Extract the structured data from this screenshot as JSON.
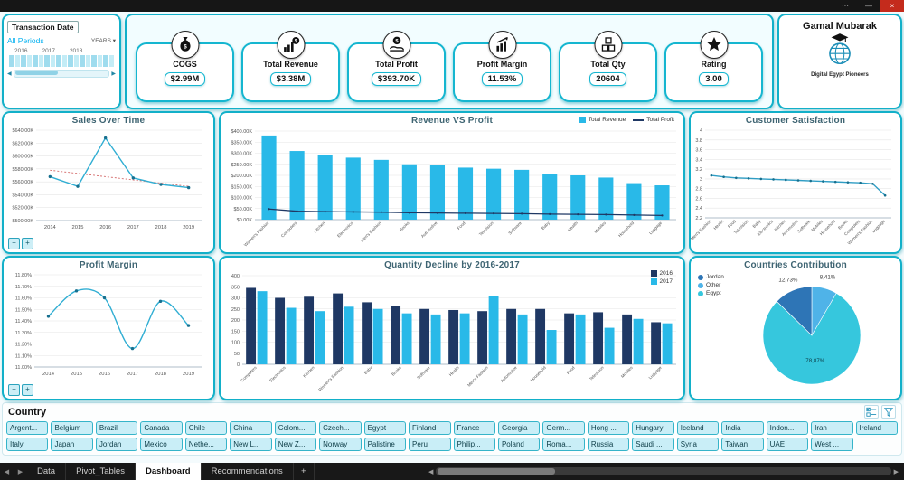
{
  "window": {
    "controls": {
      "more": "···",
      "minimize": "—",
      "close": "×"
    }
  },
  "slicer_date": {
    "title": "Transaction Date",
    "period_label": "All Periods",
    "mode_label": "YEARS",
    "years": [
      "2016",
      "2017",
      "2018"
    ],
    "scroll_left": "◀",
    "scroll_right": "▶"
  },
  "kpis": [
    {
      "label": "COGS",
      "value": "$2.99M",
      "icon": "money-bag-icon"
    },
    {
      "label": "Total Revenue",
      "value": "$3.38M",
      "icon": "revenue-icon"
    },
    {
      "label": "Total Profit",
      "value": "$393.70K",
      "icon": "profit-hand-icon"
    },
    {
      "label": "Profit Margin",
      "value": "11.53%",
      "icon": "margin-chart-icon"
    },
    {
      "label": "Total Qty",
      "value": "20604",
      "icon": "boxes-icon"
    },
    {
      "label": "Rating",
      "value": "3.00",
      "icon": "star-icon"
    }
  ],
  "profile": {
    "name": "Gamal Mubarak",
    "org": "Digital Egypt Pioneers"
  },
  "chart_controls": {
    "zoom_out": "−",
    "zoom_in": "+"
  },
  "country_slicer": {
    "title": "Country",
    "rows": [
      [
        "Argent...",
        "Belgium",
        "Brazil",
        "Canada",
        "Chile",
        "China",
        "Colom...",
        "Czech...",
        "Egypt",
        "Finland",
        "France",
        "Georgia",
        "Germ...",
        "Hong ...",
        "Hungary",
        "Iceland",
        "India",
        "Indon...",
        "Iran",
        "Ireland"
      ],
      [
        "Italy",
        "Japan",
        "Jordan",
        "Mexico",
        "Nethe...",
        "New L...",
        "New Z...",
        "Norway",
        "Palistine",
        "Peru",
        "Philip...",
        "Poland",
        "Roma...",
        "Russia",
        "Saudi ...",
        "Syria",
        "Taiwan",
        "UAE",
        "West ..."
      ]
    ]
  },
  "sheet_tabs": {
    "nav_left": "◀",
    "nav_right": "▶",
    "tabs": [
      "Data",
      "Pivot_Tables",
      "Dashboard",
      "Recommendations"
    ],
    "active": "Dashboard",
    "add": "+",
    "hscroll_left": "◀",
    "hscroll_right": "▶"
  },
  "chart_data": [
    {
      "id": "sales_over_time",
      "type": "line",
      "title": "Sales Over Time",
      "x": [
        "2014",
        "2015",
        "2016",
        "2017",
        "2018",
        "2019"
      ],
      "values": [
        568,
        553,
        628,
        566,
        556,
        551
      ],
      "trendline": [
        578,
        553
      ],
      "ylim": [
        500,
        640
      ],
      "yticks": [
        500,
        520,
        540,
        560,
        580,
        600,
        620,
        640
      ],
      "ytick_labels": [
        "$500.00K",
        "$520.00K",
        "$540.00K",
        "$560.00K",
        "$580.00K",
        "$600.00K",
        "$620.00K",
        "$640.00K"
      ],
      "color": "#31aed3",
      "grid": true,
      "unit": "$K"
    },
    {
      "id": "revenue_vs_profit",
      "type": "combo",
      "title": "Revenue VS  Profit",
      "legend": [
        "Total Revenue",
        "Total Profit"
      ],
      "categories": [
        "Women's Fashion",
        "Computers",
        "Kitchen",
        "Electronics",
        "Men's Fashion",
        "Books",
        "Automotive",
        "Food",
        "Television",
        "Software",
        "Baby",
        "Health",
        "Mobiles",
        "Household",
        "Luggage"
      ],
      "bar_values": [
        380,
        310,
        290,
        280,
        270,
        250,
        245,
        235,
        230,
        225,
        205,
        200,
        190,
        165,
        155
      ],
      "line_values": [
        48,
        38,
        36,
        35,
        34,
        31,
        30,
        29,
        28,
        27,
        25,
        24,
        23,
        21,
        19
      ],
      "ylim": [
        0,
        400
      ],
      "yticks": [
        0,
        50,
        100,
        150,
        200,
        250,
        300,
        350,
        400
      ],
      "ytick_labels": [
        "$0.00K",
        "$50.00K",
        "$100.00K",
        "$150.00K",
        "$200.00K",
        "$250.00K",
        "$300.00K",
        "$350.00K",
        "$400.00K"
      ],
      "bar_color": "#29b9e8",
      "line_color": "#1f3864",
      "rotate_labels": true,
      "unit": "$K"
    },
    {
      "id": "customer_satisfaction",
      "type": "line",
      "title": "Customer Satisfaction",
      "categories": [
        "Men's Fashion",
        "Health",
        "Food",
        "Television",
        "Baby",
        "Electronics",
        "Kitchen",
        "Automotive",
        "Software",
        "Mobiles",
        "Household",
        "Books",
        "Computers",
        "Women's Fashion",
        "Luggage"
      ],
      "values": [
        3.07,
        3.04,
        3.02,
        3.01,
        3.0,
        2.99,
        2.98,
        2.97,
        2.96,
        2.95,
        2.94,
        2.93,
        2.92,
        2.9,
        2.66
      ],
      "ylim": [
        2.2,
        4
      ],
      "yticks": [
        2.2,
        2.4,
        2.6,
        2.8,
        3,
        3.2,
        3.4,
        3.6,
        3.8,
        4
      ],
      "ytick_labels": [
        "2.2",
        "2.4",
        "2.6",
        "2.8",
        "3",
        "3.2",
        "3.4",
        "3.6",
        "3.8",
        "4"
      ],
      "color": "#2f9dc4",
      "rotate_labels": true,
      "marker_r": 1.3
    },
    {
      "id": "profit_margin",
      "type": "line",
      "title": "Profit Margin",
      "x": [
        "2014",
        "2015",
        "2016",
        "2017",
        "2018",
        "2019"
      ],
      "values": [
        11.44,
        11.66,
        11.6,
        11.16,
        11.57,
        11.36
      ],
      "ylim": [
        11.0,
        11.8
      ],
      "yticks": [
        11.0,
        11.1,
        11.2,
        11.3,
        11.4,
        11.5,
        11.6,
        11.7,
        11.8
      ],
      "ytick_labels": [
        "11.00%",
        "11.10%",
        "11.20%",
        "11.30%",
        "11.40%",
        "11.50%",
        "11.60%",
        "11.70%",
        "11.80%"
      ],
      "color": "#31aed3",
      "smooth": true,
      "unit": "%"
    },
    {
      "id": "quantity_decline",
      "type": "grouped_bar",
      "title": "Quantity Decline by 2016-2017",
      "legend": [
        "2016",
        "2017"
      ],
      "categories": [
        "Computers",
        "Electronics",
        "Kitchen",
        "Women's Fashion",
        "Baby",
        "Books",
        "Software",
        "Health",
        "Men's Fashion",
        "Automotive",
        "Household",
        "Food",
        "Television",
        "Mobiles",
        "Luggage"
      ],
      "series": [
        {
          "name": "2016",
          "values": [
            345,
            300,
            305,
            320,
            280,
            265,
            250,
            245,
            240,
            250,
            250,
            230,
            235,
            225,
            190
          ]
        },
        {
          "name": "2017",
          "values": [
            330,
            255,
            240,
            260,
            250,
            230,
            225,
            230,
            310,
            225,
            155,
            225,
            165,
            205,
            185
          ]
        }
      ],
      "colors": [
        "#1f3864",
        "#29b9e8"
      ],
      "ylim": [
        0,
        400
      ],
      "yticks": [
        0,
        50,
        100,
        150,
        200,
        250,
        300,
        350,
        400
      ],
      "ytick_labels": [
        "0",
        "50",
        "100",
        "150",
        "200",
        "250",
        "300",
        "350",
        "400"
      ],
      "rotate_labels": true
    },
    {
      "id": "countries_contribution",
      "type": "pie",
      "title": "Countries Contribution",
      "legend_order": [
        "Jordan",
        "Other",
        "Egypt"
      ],
      "slices": [
        {
          "label": "Other",
          "pct": 8.41,
          "pct_label": "8,41%",
          "color": "#4fb3e8"
        },
        {
          "label": "Egypt",
          "pct": 78.87,
          "pct_label": "78,87%",
          "color": "#36c7dd"
        },
        {
          "label": "Jordan",
          "pct": 12.73,
          "pct_label": "12,73%",
          "color": "#2e75b6"
        }
      ]
    }
  ]
}
